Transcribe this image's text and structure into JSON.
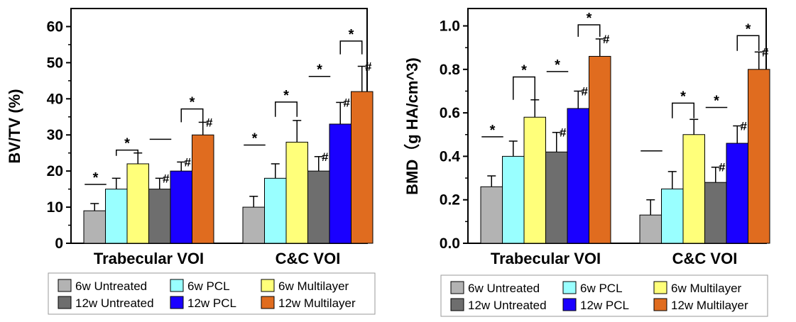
{
  "chart_data": [
    {
      "type": "bar",
      "ylabel": "BV/TV (%)",
      "ylim": [
        0,
        65
      ],
      "yticks": [
        "0",
        "10",
        "20",
        "30",
        "40",
        "50",
        "60"
      ],
      "ytick_values": [
        0,
        10,
        20,
        30,
        40,
        50,
        60
      ],
      "categories": [
        "Trabecular VOI",
        "C&C VOI"
      ],
      "series": [
        {
          "name": "6w Untreated",
          "color": "#b3b3b3",
          "values": [
            9,
            10
          ],
          "errors": [
            2,
            3
          ]
        },
        {
          "name": "6w PCL",
          "color": "#99ffff",
          "values": [
            15,
            18
          ],
          "errors": [
            3,
            4
          ]
        },
        {
          "name": "6w Multilayer",
          "color": "#ffff7a",
          "values": [
            22,
            28
          ],
          "errors": [
            3,
            6
          ]
        },
        {
          "name": "12w Untreated",
          "color": "#6e6e6e",
          "values": [
            15,
            20
          ],
          "errors": [
            3,
            4
          ]
        },
        {
          "name": "12w PCL",
          "color": "#1a00ff",
          "values": [
            20,
            33
          ],
          "errors": [
            2.5,
            6
          ]
        },
        {
          "name": "12w Multilayer",
          "color": "#e06c1f",
          "values": [
            30,
            42
          ],
          "errors": [
            3.5,
            7
          ]
        }
      ],
      "hash_marks": [
        {
          "category": 0,
          "series": 3,
          "text": "#"
        },
        {
          "category": 0,
          "series": 4,
          "text": "#"
        },
        {
          "category": 0,
          "series": 5,
          "text": "#"
        },
        {
          "category": 1,
          "series": 3,
          "text": "#"
        },
        {
          "category": 1,
          "series": 4,
          "text": "#"
        },
        {
          "category": 1,
          "series": 5,
          "text": "#"
        }
      ],
      "significance": [
        {
          "type": "line",
          "category": 0,
          "from": 0,
          "to": 1,
          "y": 16.3,
          "label": "*"
        },
        {
          "type": "bracket",
          "category": 0,
          "from": 1,
          "to": 2,
          "y": 25.8,
          "drop": 1.6,
          "label": "*"
        },
        {
          "type": "line",
          "category": 0,
          "from": 3,
          "to": 4,
          "y": 28.8,
          "label": ""
        },
        {
          "type": "bracket",
          "category": 0,
          "from": 4,
          "to": 5,
          "y": 37.2,
          "drop": 3.7,
          "label": "*"
        },
        {
          "type": "line",
          "category": 1,
          "from": 0,
          "to": 1,
          "y": 27.2,
          "label": "*"
        },
        {
          "type": "bracket",
          "category": 1,
          "from": 1,
          "to": 2,
          "y": 39.1,
          "drop": 4.1,
          "label": "*"
        },
        {
          "type": "line",
          "category": 1,
          "from": 3,
          "to": 4,
          "y": 46.2,
          "label": "*"
        },
        {
          "type": "bracket",
          "category": 1,
          "from": 4,
          "to": 5,
          "y": 56.0,
          "drop": 3.7,
          "label": "*"
        }
      ]
    },
    {
      "type": "bar",
      "ylabel": "BMD（g HA/cm^3)",
      "ylim": [
        0,
        1.08
      ],
      "yticks": [
        "0.0",
        "0.2",
        "0.4",
        "0.6",
        "0.8",
        "1.0"
      ],
      "ytick_values": [
        0,
        0.2,
        0.4,
        0.6,
        0.8,
        1.0
      ],
      "categories": [
        "Trabecular VOI",
        "C&C VOI"
      ],
      "series": [
        {
          "name": "6w Untreated",
          "color": "#b3b3b3",
          "values": [
            0.26,
            0.13
          ],
          "errors": [
            0.05,
            0.07
          ]
        },
        {
          "name": "6w PCL",
          "color": "#99ffff",
          "values": [
            0.4,
            0.25
          ],
          "errors": [
            0.07,
            0.08
          ]
        },
        {
          "name": "6w Multilayer",
          "color": "#ffff7a",
          "values": [
            0.58,
            0.5
          ],
          "errors": [
            0.08,
            0.07
          ]
        },
        {
          "name": "12w Untreated",
          "color": "#6e6e6e",
          "values": [
            0.42,
            0.28
          ],
          "errors": [
            0.09,
            0.07
          ]
        },
        {
          "name": "12w PCL",
          "color": "#1a00ff",
          "values": [
            0.62,
            0.46
          ],
          "errors": [
            0.08,
            0.08
          ]
        },
        {
          "name": "12w Multilayer",
          "color": "#e06c1f",
          "values": [
            0.86,
            0.8
          ],
          "errors": [
            0.08,
            0.08
          ]
        }
      ],
      "hash_marks": [
        {
          "category": 0,
          "series": 3,
          "text": "#"
        },
        {
          "category": 0,
          "series": 4,
          "text": "#"
        },
        {
          "category": 0,
          "series": 5,
          "text": "#"
        },
        {
          "category": 1,
          "series": 3,
          "text": "#"
        },
        {
          "category": 1,
          "series": 4,
          "text": "#"
        },
        {
          "category": 1,
          "series": 5,
          "text": "#"
        }
      ],
      "significance": [
        {
          "type": "line",
          "category": 0,
          "from": 0,
          "to": 1,
          "y": 0.49,
          "label": "*"
        },
        {
          "type": "bracket",
          "category": 0,
          "from": 1,
          "to": 2,
          "y": 0.765,
          "drop": 0.105,
          "label": "*"
        },
        {
          "type": "line",
          "category": 0,
          "from": 3,
          "to": 4,
          "y": 0.79,
          "label": "*"
        },
        {
          "type": "bracket",
          "category": 0,
          "from": 4,
          "to": 5,
          "y": 1.005,
          "drop": 0.055,
          "label": "*"
        },
        {
          "type": "line",
          "category": 1,
          "from": 0,
          "to": 1,
          "y": 0.425,
          "label": ""
        },
        {
          "type": "bracket",
          "category": 1,
          "from": 1,
          "to": 2,
          "y": 0.645,
          "drop": 0.07,
          "label": "*"
        },
        {
          "type": "line",
          "category": 1,
          "from": 3,
          "to": 4,
          "y": 0.625,
          "label": "*"
        },
        {
          "type": "bracket",
          "category": 1,
          "from": 4,
          "to": 5,
          "y": 0.955,
          "drop": 0.07,
          "label": "*"
        }
      ]
    }
  ]
}
